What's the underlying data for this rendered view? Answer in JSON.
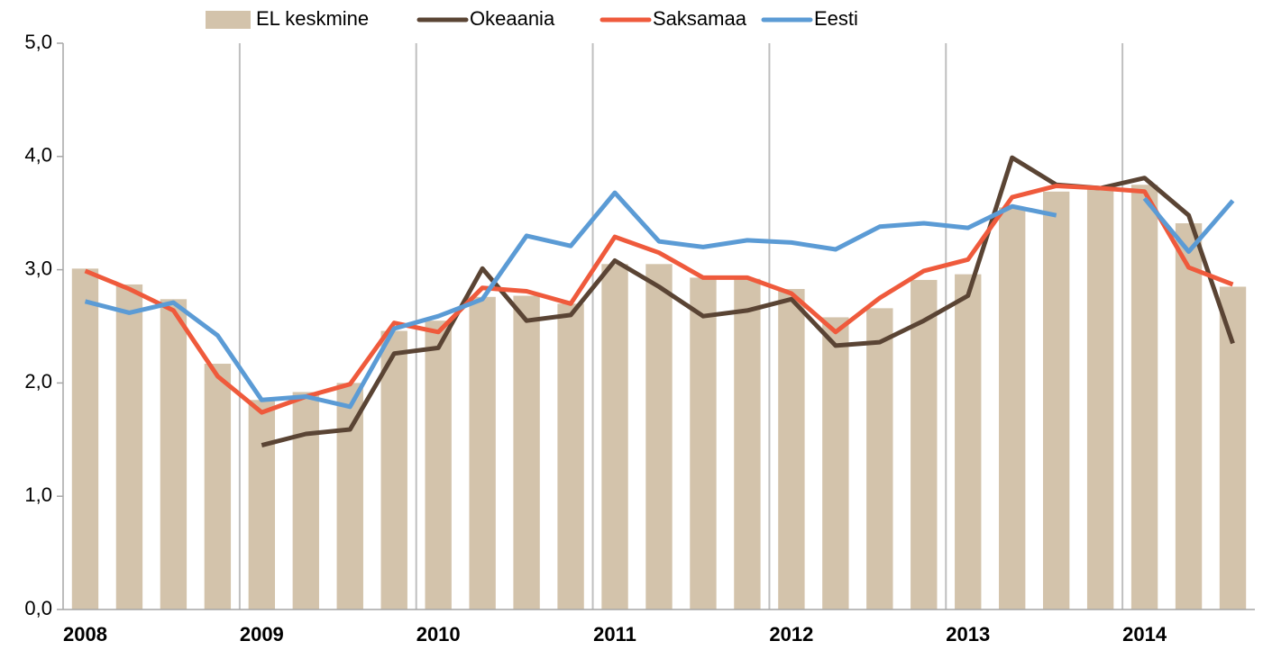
{
  "chart_data": {
    "type": "bar-line",
    "categories": [
      "2008",
      null,
      null,
      null,
      "2009",
      null,
      null,
      null,
      "2010",
      null,
      null,
      null,
      "2011",
      null,
      null,
      null,
      "2012",
      null,
      null,
      null,
      "2013",
      null,
      null,
      null,
      "2014",
      null,
      null
    ],
    "series": [
      {
        "name": "EL keskmine",
        "type": "bar",
        "color": "#d3c3ab",
        "values": [
          3.01,
          2.87,
          2.74,
          2.17,
          1.85,
          1.92,
          2.0,
          2.46,
          2.55,
          2.76,
          2.77,
          2.7,
          3.05,
          3.05,
          2.93,
          2.92,
          2.83,
          2.58,
          2.66,
          2.91,
          2.96,
          3.55,
          3.69,
          3.72,
          3.75,
          3.41,
          2.85
        ]
      },
      {
        "name": "Okeaania",
        "type": "line",
        "color": "#5a4434",
        "values": [
          null,
          null,
          null,
          null,
          1.45,
          1.55,
          1.59,
          2.26,
          2.31,
          3.01,
          2.55,
          2.6,
          3.08,
          2.85,
          2.59,
          2.64,
          2.74,
          2.33,
          2.36,
          2.55,
          2.77,
          3.99,
          3.75,
          3.72,
          3.81,
          3.48,
          2.35
        ]
      },
      {
        "name": "Saksamaa",
        "type": "line",
        "color": "#ef5a3c",
        "values": [
          2.99,
          2.83,
          2.64,
          2.06,
          1.74,
          1.88,
          1.99,
          2.53,
          2.45,
          2.84,
          2.81,
          2.7,
          3.29,
          3.15,
          2.93,
          2.93,
          2.79,
          2.45,
          2.75,
          2.99,
          3.09,
          3.64,
          3.74,
          3.72,
          3.69,
          3.02,
          2.87
        ]
      },
      {
        "name": "Eesti",
        "type": "line",
        "color": "#5b9bd5",
        "values": [
          2.72,
          2.62,
          2.71,
          2.42,
          1.85,
          1.88,
          1.79,
          2.48,
          2.59,
          2.74,
          3.3,
          3.21,
          3.68,
          3.25,
          3.2,
          3.26,
          3.24,
          3.18,
          3.38,
          3.41,
          3.37,
          3.56,
          3.48,
          null,
          3.63,
          3.16,
          3.61
        ]
      }
    ],
    "ylim": [
      0,
      5
    ],
    "yticks": [
      {
        "value": 0,
        "label": "0,0"
      },
      {
        "value": 1,
        "label": "1,0"
      },
      {
        "value": 2,
        "label": "2,0"
      },
      {
        "value": 3,
        "label": "3,0"
      },
      {
        "value": 4,
        "label": "4,0"
      },
      {
        "value": 5,
        "label": "5,0"
      }
    ],
    "legend": "top"
  }
}
